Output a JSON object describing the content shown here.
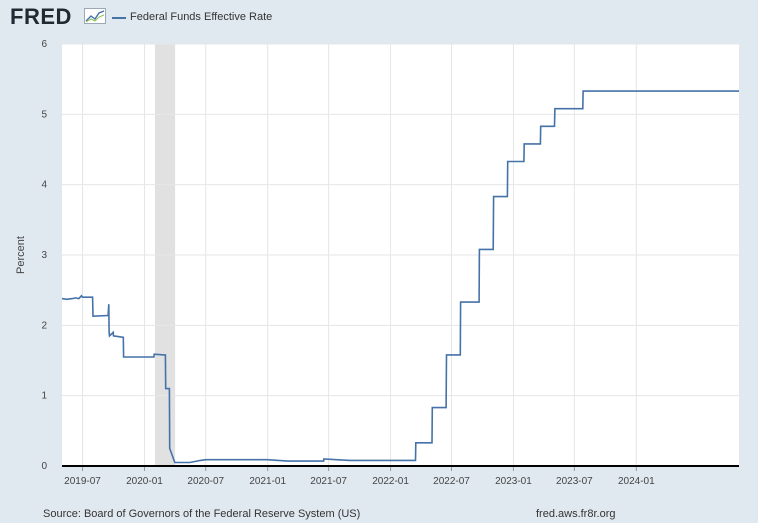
{
  "header": {
    "logo_text": "FRED",
    "logo_icon": "line-chart-icon"
  },
  "footer": {
    "source": "Source: Board of Governors of the Federal Reserve System (US)",
    "site": "fred.aws.fr8r.org"
  },
  "colors": {
    "series": "#4572a7",
    "background": "#e1e9f0",
    "plot_background": "#ffffff",
    "recession_band": "#e1e1e1"
  },
  "chart_data": {
    "type": "line",
    "title": "",
    "xlabel": "",
    "ylabel": "Percent",
    "ylim": [
      0,
      6
    ],
    "yticks": [
      "0",
      "1",
      "2",
      "3",
      "4",
      "5",
      "6"
    ],
    "xticks": [
      "2019-07",
      "2020-01",
      "2020-07",
      "2021-01",
      "2021-07",
      "2022-01",
      "2022-07",
      "2023-01",
      "2023-07",
      "2024-01"
    ],
    "xlim": [
      "2019-05-01",
      "2024-11-01"
    ],
    "grid": true,
    "legend": "top-left",
    "recession": {
      "start": "2020-02-01",
      "end": "2020-04-01"
    },
    "series": [
      {
        "name": "Federal Funds Effective Rate",
        "x": [
          "2019-05-01",
          "2019-05-15",
          "2019-06-01",
          "2019-06-10",
          "2019-06-20",
          "2019-06-28",
          "2019-07-01",
          "2019-07-31",
          "2019-08-01",
          "2019-09-15",
          "2019-09-17",
          "2019-09-18",
          "2019-09-19",
          "2019-09-30",
          "2019-10-01",
          "2019-10-15",
          "2019-10-30",
          "2019-10-31",
          "2019-12-31",
          "2020-01-15",
          "2020-01-29",
          "2020-01-30",
          "2020-02-28",
          "2020-03-03",
          "2020-03-04",
          "2020-03-15",
          "2020-03-16",
          "2020-03-31",
          "2020-04-15",
          "2020-05-15",
          "2020-06-15",
          "2020-07-01",
          "2020-09-01",
          "2020-12-31",
          "2021-03-01",
          "2021-06-16",
          "2021-06-17",
          "2021-09-01",
          "2021-12-31",
          "2022-03-16",
          "2022-03-17",
          "2022-05-04",
          "2022-05-05",
          "2022-06-15",
          "2022-06-16",
          "2022-07-27",
          "2022-07-28",
          "2022-09-21",
          "2022-09-22",
          "2022-11-02",
          "2022-11-03",
          "2022-12-14",
          "2022-12-15",
          "2023-02-01",
          "2023-02-02",
          "2023-03-22",
          "2023-03-23",
          "2023-05-03",
          "2023-05-04",
          "2023-07-26",
          "2023-07-27",
          "2024-11-01"
        ],
        "values": [
          2.38,
          2.37,
          2.38,
          2.39,
          2.38,
          2.42,
          2.4,
          2.4,
          2.13,
          2.14,
          2.3,
          1.9,
          1.85,
          1.9,
          1.85,
          1.84,
          1.83,
          1.55,
          1.55,
          1.55,
          1.55,
          1.59,
          1.58,
          1.58,
          1.1,
          1.1,
          0.25,
          0.05,
          0.05,
          0.05,
          0.08,
          0.09,
          0.09,
          0.09,
          0.07,
          0.07,
          0.1,
          0.08,
          0.08,
          0.08,
          0.33,
          0.33,
          0.83,
          0.83,
          1.58,
          1.58,
          2.33,
          2.33,
          3.08,
          3.08,
          3.83,
          3.83,
          4.33,
          4.33,
          4.58,
          4.58,
          4.83,
          4.83,
          5.08,
          5.08,
          5.33,
          5.33
        ]
      }
    ]
  }
}
